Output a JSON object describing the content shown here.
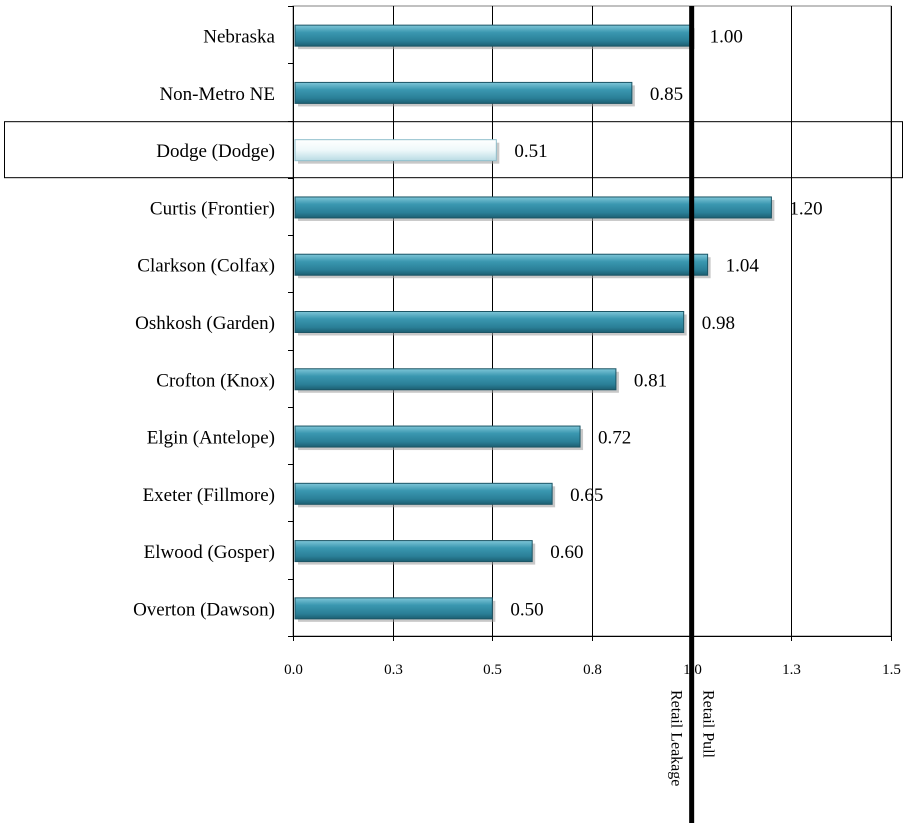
{
  "chart_data": {
    "type": "bar",
    "orientation": "horizontal",
    "categories": [
      "Nebraska",
      "Non-Metro NE",
      "Dodge (Dodge)",
      "Curtis (Frontier)",
      "Clarkson (Colfax)",
      "Oshkosh (Garden)",
      "Crofton (Knox)",
      "Elgin (Antelope)",
      "Exeter (Fillmore)",
      "Elwood (Gosper)",
      "Overton (Dawson)"
    ],
    "values": [
      1.0,
      0.85,
      0.51,
      1.2,
      1.04,
      0.98,
      0.81,
      0.72,
      0.65,
      0.6,
      0.5
    ],
    "value_labels": [
      "1.00",
      "0.85",
      "0.51",
      "1.20",
      "1.04",
      "0.98",
      "0.81",
      "0.72",
      "0.65",
      "0.60",
      "0.50"
    ],
    "highlighted_category": "Dodge (Dodge)",
    "xlim": [
      0,
      1.5
    ],
    "x_ticks": [
      0,
      0.25,
      0.5,
      0.75,
      1.0,
      1.25,
      1.5
    ],
    "x_tick_labels": [
      "0.0",
      "0.3",
      "0.5",
      "0.8",
      "1.0",
      "1.3",
      "1.5"
    ],
    "grid": "vertical",
    "reference_line": {
      "x": 1.0,
      "label_left": "Retail Leakage",
      "label_right": "Retail Pull"
    },
    "colors": {
      "bar": "#2e8aa3",
      "bar_highlight": "#e6f4f7",
      "reference_line": "#000000"
    }
  }
}
